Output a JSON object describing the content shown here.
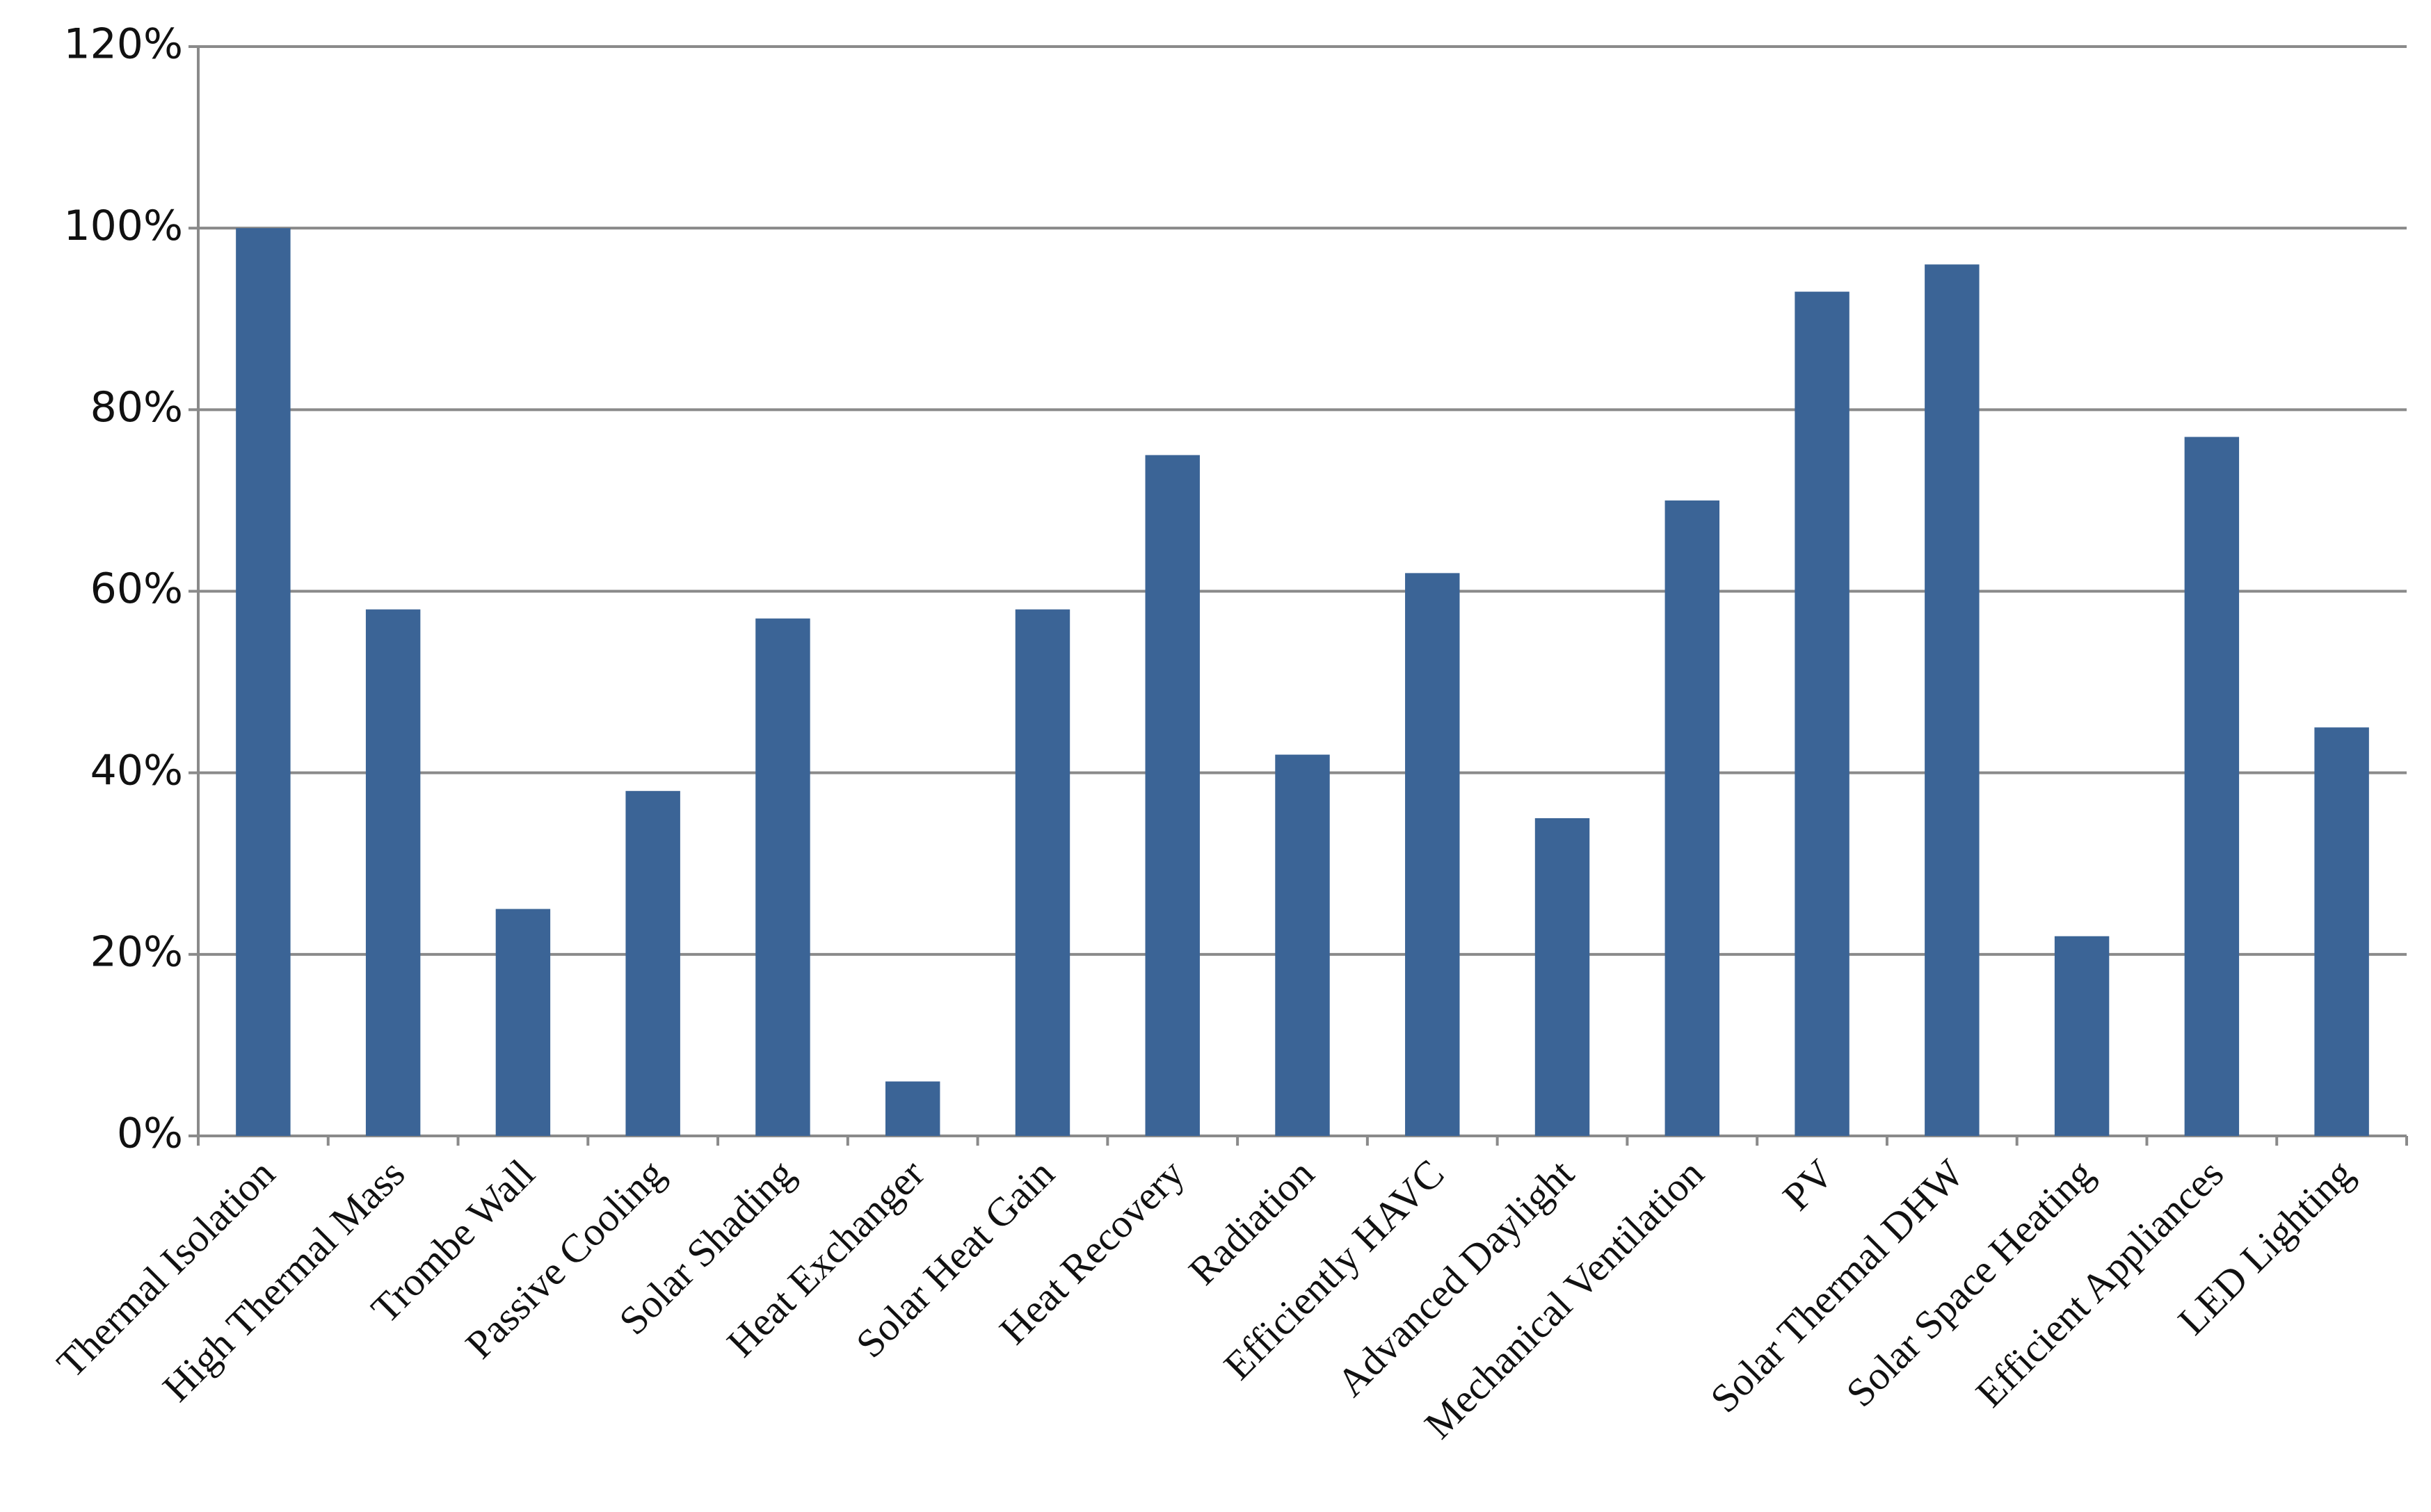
{
  "chart_data": {
    "type": "bar",
    "categories": [
      "Thermal Isolation",
      "High Thermal Mass",
      "Trombe Wall",
      "Passive Cooling",
      "Solar Shading",
      "Heat Exchanger",
      "Solar Heat Gain",
      "Heat Recovery",
      "Radiation",
      "Efficiently HAVC",
      "Advanced Daylight",
      "Mechanical Ventilation",
      "PV",
      "Solar Thermal DHW",
      "Solar Space Heating",
      "Efficient Appliances",
      "LED Lighting"
    ],
    "values": [
      100,
      58,
      25,
      38,
      57,
      6,
      58,
      75,
      42,
      62,
      35,
      70,
      93,
      96,
      22,
      77,
      45
    ],
    "color": "#3b6496",
    "ylim": [
      0,
      120
    ],
    "yticks": [
      {
        "value": 0,
        "label": "0%"
      },
      {
        "value": 20,
        "label": "20%"
      },
      {
        "value": 40,
        "label": "40%"
      },
      {
        "value": 60,
        "label": "60%"
      },
      {
        "value": 80,
        "label": "80%"
      },
      {
        "value": 100,
        "label": "100%"
      },
      {
        "value": 120,
        "label": "120%"
      }
    ],
    "grid": true
  }
}
